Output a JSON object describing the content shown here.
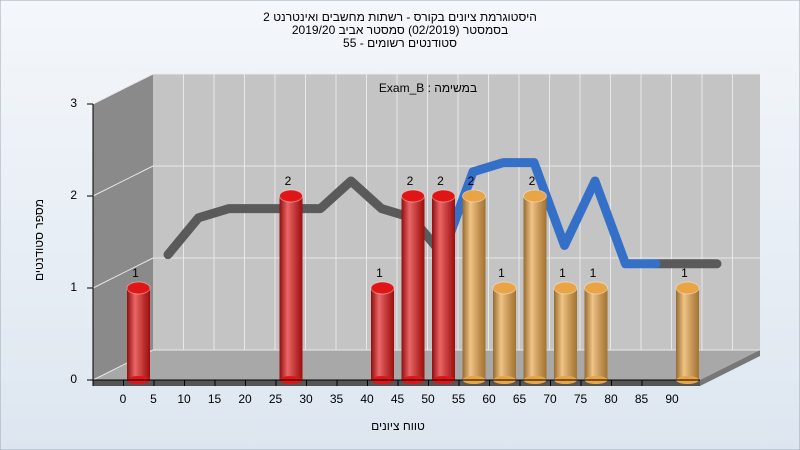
{
  "chart_data": {
    "type": "bar",
    "title": "היסטוגרמת ציונים בקורס - רשתות מחשבים ואינטרנט 2",
    "subtitle": "בסמסטר (02/2019) סמסטר אביב 2019/20",
    "subtitle2": "סטודנטים רשומים - 55",
    "annotation": "Exam_B : במשימה",
    "y_label": "מספר סטודנטים",
    "x_label": "טווח ציונים",
    "categories": [
      "0",
      "5",
      "10",
      "15",
      "20",
      "25",
      "30",
      "35",
      "40",
      "45",
      "50",
      "55",
      "60",
      "65",
      "70",
      "75",
      "80",
      "85",
      "90"
    ],
    "values": [
      1,
      0,
      0,
      0,
      0,
      2,
      0,
      0,
      1,
      2,
      2,
      2,
      1,
      2,
      1,
      1,
      0,
      0,
      1
    ],
    "colors": [
      "#e01515",
      "#e01515",
      "#e01515",
      "#e01515",
      "#e01515",
      "#e01515",
      "#e01515",
      "#e01515",
      "#e01515",
      "#e01515",
      "#e01515",
      "#e8a445",
      "#e8a445",
      "#e8a445",
      "#e8a445",
      "#e8a445",
      "#e8a445",
      "#e8a445",
      "#e8a445"
    ],
    "lines": [
      {
        "color": "#5a5a5a",
        "values": [
          1.2,
          1.6,
          1.7,
          1.7,
          1.7,
          1.7,
          2.0,
          1.7,
          1.6,
          1.2,
          null,
          null,
          null,
          null,
          null,
          null,
          1.1,
          1.1,
          1.1
        ]
      },
      {
        "color": "#3570c8",
        "values": [
          null,
          null,
          null,
          null,
          null,
          null,
          null,
          null,
          null,
          1.2,
          2.1,
          2.2,
          2.2,
          1.3,
          2.0,
          1.1,
          1.1,
          null,
          null
        ]
      }
    ],
    "ylim": [
      0,
      3
    ],
    "yticks": [
      0,
      1,
      2,
      3
    ],
    "grid": true
  }
}
